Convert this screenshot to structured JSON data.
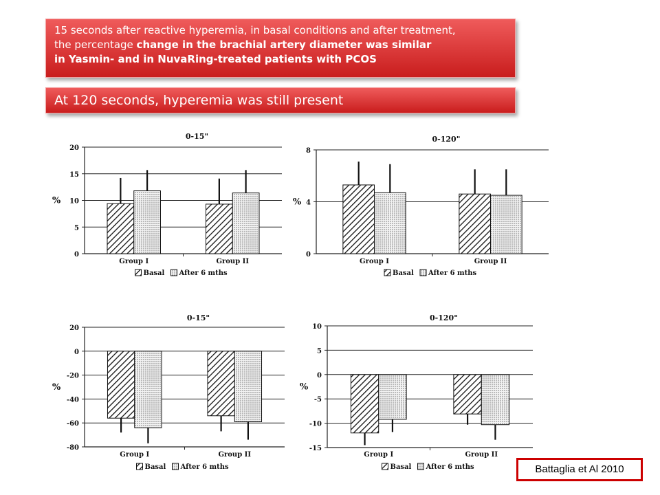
{
  "banners": {
    "top": {
      "line1": "15 seconds after reactive hyperemia, in basal conditions and after treatment,",
      "line2_normal": "the percentage ",
      "line2_bold": "change in the brachial artery diameter was similar",
      "line3": "in Yasmin- and in NuvaRing-treated patients with PCOS"
    },
    "second": "At 120 seconds, hyperemia was still present"
  },
  "citation": "Battaglia et Al 2010",
  "colors": {
    "banner": "#d62828",
    "citation_border": "#cc0000"
  },
  "chart_data": [
    {
      "type": "bar",
      "title": "0-15\"",
      "ylabel": "%",
      "categories": [
        "Group I",
        "Group II"
      ],
      "ylim": [
        0,
        20
      ],
      "yticks": [
        0,
        5,
        10,
        15,
        20
      ],
      "grid": true,
      "series": [
        {
          "name": "Basal",
          "values": [
            9.4,
            9.3
          ],
          "errors": [
            4.8,
            4.8
          ]
        },
        {
          "name": "After 6 mths",
          "values": [
            11.8,
            11.4
          ],
          "errors": [
            3.9,
            4.3
          ]
        }
      ]
    },
    {
      "type": "bar",
      "title": "0-120\"",
      "ylabel": "%",
      "categories": [
        "Group I",
        "Group II"
      ],
      "ylim": [
        0,
        8
      ],
      "yticks": [
        0,
        4,
        8
      ],
      "grid": true,
      "series": [
        {
          "name": "Basal",
          "values": [
            5.3,
            4.6
          ],
          "errors": [
            1.8,
            1.9
          ]
        },
        {
          "name": "After 6 mths",
          "values": [
            4.7,
            4.5
          ],
          "errors": [
            2.2,
            2.0
          ]
        }
      ]
    },
    {
      "type": "bar",
      "title": "0-15\"",
      "ylabel": "%",
      "categories": [
        "Group I",
        "Group II"
      ],
      "ylim": [
        -80,
        20
      ],
      "yticks": [
        -80,
        -60,
        -40,
        -20,
        0,
        20
      ],
      "grid": true,
      "series": [
        {
          "name": "Basal",
          "values": [
            -56,
            -54
          ],
          "errors": [
            12,
            13
          ]
        },
        {
          "name": "After 6 mths",
          "values": [
            -64,
            -59
          ],
          "errors": [
            13,
            15
          ]
        }
      ]
    },
    {
      "type": "bar",
      "title": "0-120\"",
      "ylabel": "%",
      "categories": [
        "Group I",
        "Group II"
      ],
      "ylim": [
        -15,
        10
      ],
      "yticks": [
        -15,
        -10,
        -5,
        0,
        5,
        10
      ],
      "grid": true,
      "series": [
        {
          "name": "Basal",
          "values": [
            -12,
            -8.1
          ],
          "errors": [
            2.5,
            2.2
          ]
        },
        {
          "name": "After 6 mths",
          "values": [
            -9.2,
            -10.3
          ],
          "errors": [
            2.6,
            3.1
          ]
        }
      ]
    }
  ]
}
